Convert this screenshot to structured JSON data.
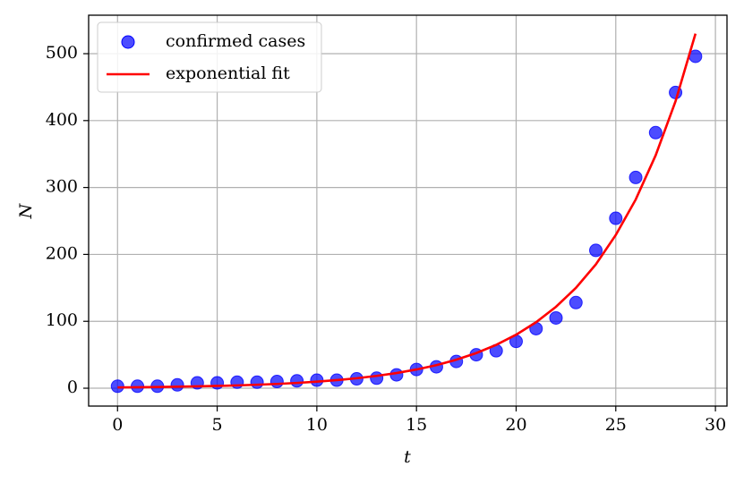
{
  "chart_data": {
    "type": "scatter",
    "xlabel": "t",
    "ylabel": "N",
    "x": [
      0,
      1,
      2,
      3,
      4,
      5,
      6,
      7,
      8,
      9,
      10,
      11,
      12,
      13,
      14,
      15,
      16,
      17,
      18,
      19,
      20,
      21,
      22,
      23,
      24,
      25,
      26,
      27,
      28,
      29
    ],
    "series": [
      {
        "name": "confirmed cases",
        "type": "scatter",
        "color": "#0000ff",
        "values": [
          3,
          3,
          3,
          5,
          8,
          8,
          9,
          9,
          10,
          11,
          12,
          12,
          14,
          15,
          20,
          28,
          32,
          40,
          50,
          56,
          70,
          89,
          105,
          128,
          206,
          254,
          315,
          382,
          442,
          496
        ]
      },
      {
        "name": "exponential fit",
        "type": "line",
        "color": "#ff0000",
        "values": [
          1.2,
          1.5,
          1.8,
          2.3,
          2.8,
          3.4,
          4.2,
          5.2,
          6.4,
          7.9,
          9.8,
          12.1,
          14.9,
          18.4,
          22.7,
          28,
          34.5,
          42.6,
          52.5,
          64.8,
          80,
          98.6,
          121.7,
          150,
          185,
          229,
          282,
          348,
          429,
          530
        ]
      }
    ],
    "xlim": [
      -1.45,
      30.58
    ],
    "ylim": [
      -26.7,
      557.5
    ],
    "xticks": [
      0,
      5,
      10,
      15,
      20,
      25,
      30
    ],
    "yticks": [
      0,
      100,
      200,
      300,
      400,
      500
    ],
    "grid": true,
    "legend": "upper-left"
  }
}
